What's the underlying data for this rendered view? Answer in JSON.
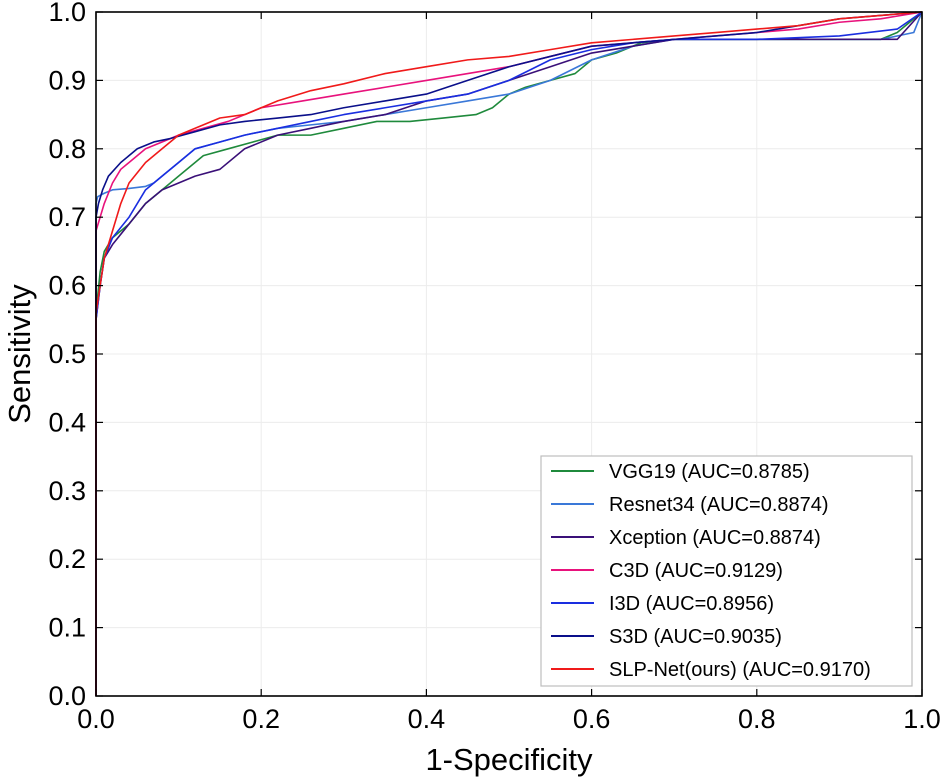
{
  "chart_data": {
    "type": "line",
    "title": "",
    "xlabel": "1-Specificity",
    "ylabel": "Sensitivity",
    "xlim": [
      0,
      1
    ],
    "ylim": [
      0,
      1
    ],
    "grid": true,
    "legend_position": "bottom-right",
    "xticks": [
      "0.0",
      "0.2",
      "0.4",
      "0.6",
      "0.8",
      "1.0"
    ],
    "yticks": [
      "0.0",
      "0.1",
      "0.2",
      "0.3",
      "0.4",
      "0.5",
      "0.6",
      "0.7",
      "0.8",
      "0.9",
      "1.0"
    ],
    "series": [
      {
        "name": "VGG19 (AUC=0.8785)",
        "color": "#1f8a3c",
        "x": [
          0,
          0,
          0.005,
          0.01,
          0.02,
          0.04,
          0.06,
          0.08,
          0.1,
          0.13,
          0.16,
          0.19,
          0.22,
          0.26,
          0.3,
          0.34,
          0.38,
          0.42,
          0.46,
          0.48,
          0.5,
          0.52,
          0.55,
          0.58,
          0.6,
          0.63,
          0.66,
          0.7,
          0.75,
          0.8,
          0.85,
          0.9,
          0.95,
          0.97,
          1.0
        ],
        "y": [
          0,
          0.56,
          0.62,
          0.65,
          0.67,
          0.69,
          0.72,
          0.74,
          0.76,
          0.79,
          0.8,
          0.81,
          0.82,
          0.82,
          0.83,
          0.84,
          0.84,
          0.845,
          0.85,
          0.86,
          0.88,
          0.89,
          0.9,
          0.91,
          0.93,
          0.94,
          0.955,
          0.96,
          0.96,
          0.96,
          0.96,
          0.96,
          0.96,
          0.97,
          1.0
        ]
      },
      {
        "name": "Resnet34 (AUC=0.8874)",
        "color": "#3a78d8",
        "x": [
          0,
          0,
          0.002,
          0.01,
          0.02,
          0.04,
          0.06,
          0.07,
          0.08,
          0.1,
          0.12,
          0.15,
          0.18,
          0.22,
          0.26,
          0.3,
          0.35,
          0.4,
          0.45,
          0.5,
          0.55,
          0.6,
          0.65,
          0.7,
          0.75,
          0.8,
          0.85,
          0.9,
          0.95,
          0.99,
          1.0
        ],
        "y": [
          0,
          0.72,
          0.73,
          0.735,
          0.74,
          0.742,
          0.745,
          0.75,
          0.76,
          0.78,
          0.8,
          0.81,
          0.82,
          0.83,
          0.835,
          0.84,
          0.85,
          0.86,
          0.87,
          0.88,
          0.9,
          0.93,
          0.95,
          0.96,
          0.96,
          0.96,
          0.96,
          0.96,
          0.96,
          0.97,
          1.0
        ]
      },
      {
        "name": "Xception (AUC=0.8874)",
        "color": "#3a1078",
        "x": [
          0,
          0,
          0.005,
          0.01,
          0.02,
          0.04,
          0.06,
          0.08,
          0.1,
          0.12,
          0.15,
          0.18,
          0.22,
          0.26,
          0.3,
          0.35,
          0.4,
          0.45,
          0.5,
          0.55,
          0.6,
          0.65,
          0.7,
          0.8,
          0.9,
          0.97,
          1.0
        ],
        "y": [
          0,
          0.55,
          0.6,
          0.64,
          0.66,
          0.69,
          0.72,
          0.74,
          0.75,
          0.76,
          0.77,
          0.8,
          0.82,
          0.83,
          0.84,
          0.85,
          0.87,
          0.88,
          0.9,
          0.92,
          0.94,
          0.95,
          0.96,
          0.96,
          0.96,
          0.96,
          1.0
        ]
      },
      {
        "name": "C3D (AUC=0.9129)",
        "color": "#e8127c",
        "x": [
          0,
          0,
          0.005,
          0.01,
          0.02,
          0.03,
          0.04,
          0.06,
          0.08,
          0.1,
          0.13,
          0.16,
          0.2,
          0.25,
          0.3,
          0.35,
          0.4,
          0.45,
          0.5,
          0.55,
          0.6,
          0.65,
          0.7,
          0.75,
          0.8,
          0.85,
          0.9,
          0.95,
          1.0
        ],
        "y": [
          0,
          0.68,
          0.7,
          0.72,
          0.75,
          0.77,
          0.78,
          0.8,
          0.81,
          0.82,
          0.83,
          0.84,
          0.86,
          0.87,
          0.88,
          0.89,
          0.9,
          0.91,
          0.92,
          0.935,
          0.95,
          0.955,
          0.96,
          0.965,
          0.97,
          0.975,
          0.985,
          0.99,
          1.0
        ]
      },
      {
        "name": "I3D (AUC=0.8956)",
        "color": "#1a2ee0",
        "x": [
          0,
          0,
          0.005,
          0.01,
          0.02,
          0.04,
          0.06,
          0.08,
          0.1,
          0.12,
          0.15,
          0.18,
          0.22,
          0.26,
          0.3,
          0.35,
          0.4,
          0.45,
          0.5,
          0.55,
          0.6,
          0.65,
          0.7,
          0.8,
          0.9,
          0.97,
          1.0
        ],
        "y": [
          0,
          0.55,
          0.6,
          0.64,
          0.67,
          0.7,
          0.74,
          0.76,
          0.78,
          0.8,
          0.81,
          0.82,
          0.83,
          0.84,
          0.85,
          0.86,
          0.87,
          0.88,
          0.9,
          0.93,
          0.945,
          0.955,
          0.96,
          0.96,
          0.965,
          0.975,
          1.0
        ]
      },
      {
        "name": "S3D (AUC=0.9035)",
        "color": "#0a0f8a",
        "x": [
          0,
          0,
          0.003,
          0.008,
          0.015,
          0.03,
          0.05,
          0.07,
          0.09,
          0.12,
          0.15,
          0.18,
          0.22,
          0.26,
          0.3,
          0.35,
          0.4,
          0.45,
          0.5,
          0.55,
          0.6,
          0.65,
          0.7,
          0.75,
          0.8,
          0.85,
          0.9,
          0.95,
          1.0
        ],
        "y": [
          0,
          0.7,
          0.72,
          0.74,
          0.76,
          0.78,
          0.8,
          0.81,
          0.815,
          0.825,
          0.835,
          0.84,
          0.845,
          0.85,
          0.86,
          0.87,
          0.88,
          0.9,
          0.92,
          0.935,
          0.95,
          0.955,
          0.96,
          0.965,
          0.97,
          0.98,
          0.99,
          0.995,
          1.0
        ]
      },
      {
        "name": "SLP-Net(ours) (AUC=0.9170)",
        "color": "#f01a1a",
        "x": [
          0,
          0,
          0.005,
          0.01,
          0.02,
          0.03,
          0.04,
          0.06,
          0.08,
          0.1,
          0.12,
          0.15,
          0.18,
          0.22,
          0.26,
          0.3,
          0.35,
          0.4,
          0.45,
          0.5,
          0.55,
          0.6,
          0.65,
          0.7,
          0.75,
          0.8,
          0.85,
          0.9,
          0.95,
          1.0
        ],
        "y": [
          0,
          0.56,
          0.6,
          0.64,
          0.68,
          0.72,
          0.75,
          0.78,
          0.8,
          0.82,
          0.83,
          0.845,
          0.85,
          0.87,
          0.885,
          0.895,
          0.91,
          0.92,
          0.93,
          0.935,
          0.945,
          0.955,
          0.96,
          0.965,
          0.97,
          0.975,
          0.98,
          0.99,
          0.995,
          1.0
        ]
      }
    ]
  }
}
